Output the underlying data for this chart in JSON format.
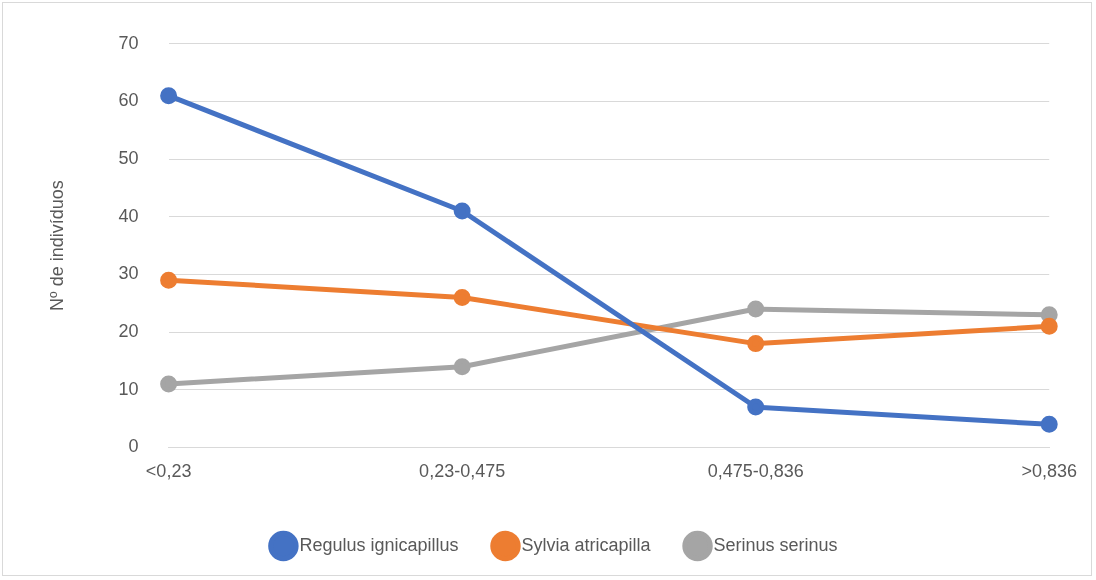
{
  "chart_data": {
    "type": "line",
    "ylabel": "Nº de indivíduos",
    "categories": [
      "<0,23",
      "0,23-0,475",
      "0,475-0,836",
      ">0,836"
    ],
    "series": [
      {
        "name": "Regulus ignicapillus",
        "color": "#4472c4",
        "values": [
          61,
          41,
          7,
          4
        ]
      },
      {
        "name": "Sylvia atricapilla",
        "color": "#ed7d31",
        "values": [
          29,
          26,
          18,
          21
        ]
      },
      {
        "name": "Serinus serinus",
        "color": "#a5a5a5",
        "values": [
          11,
          14,
          24,
          23
        ]
      }
    ],
    "ylim": [
      0,
      70
    ],
    "yticks": [
      0,
      10,
      20,
      30,
      40,
      50,
      60,
      70
    ],
    "grid": "y",
    "legend": "bottom",
    "marker": "circle",
    "line_style": "solid"
  }
}
